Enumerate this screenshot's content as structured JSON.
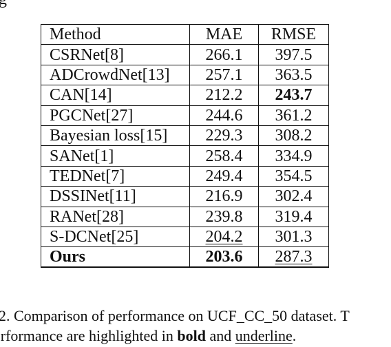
{
  "top_fragment": "g",
  "table": {
    "headers": [
      "Method",
      "MAE",
      "RMSE"
    ],
    "rows": [
      {
        "method": "CSRNet[8]",
        "mae": "266.1",
        "rmse": "397.5"
      },
      {
        "method": "ADCrowdNet[13]",
        "mae": "257.1",
        "rmse": "363.5"
      },
      {
        "method": "CAN[14]",
        "mae": "212.2",
        "rmse": "243.7"
      },
      {
        "method": "PGCNet[27]",
        "mae": "244.6",
        "rmse": "361.2"
      },
      {
        "method": "Bayesian loss[15]",
        "mae": "229.3",
        "rmse": "308.2"
      },
      {
        "method": "SANet[1]",
        "mae": "258.4",
        "rmse": "334.9"
      },
      {
        "method": "TEDNet[7]",
        "mae": "249.4",
        "rmse": "354.5"
      },
      {
        "method": "DSSINet[11]",
        "mae": "216.9",
        "rmse": "302.4"
      },
      {
        "method": "RANet[28]",
        "mae": "239.8",
        "rmse": "319.4"
      },
      {
        "method": "S-DCNet[25]",
        "mae": "204.2",
        "rmse": "301.3"
      },
      {
        "method": "Ours",
        "mae": "203.6",
        "rmse": "287.3"
      }
    ]
  },
  "caption": {
    "line1": " 2. Comparison of performance on UCF_CC_50 dataset. T",
    "line2_a": "performance are highlighted in ",
    "line2_bold": "bold",
    "line2_b": " and ",
    "line2_underline": "underline",
    "line2_c": "."
  }
}
